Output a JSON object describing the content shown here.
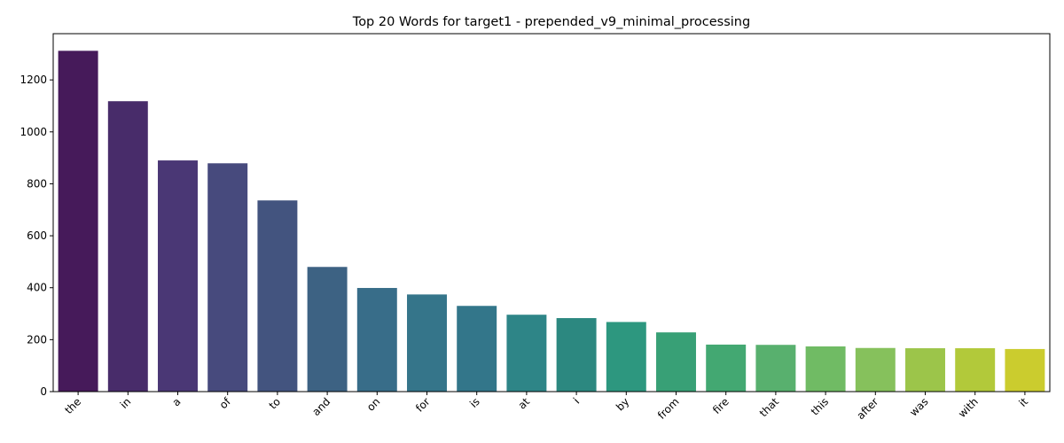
{
  "chart_data": {
    "type": "bar",
    "title": "Top 20 Words for target1 - prepended_v9_minimal_processing",
    "xlabel": "",
    "ylabel": "",
    "categories": [
      "the",
      "in",
      "a",
      "of",
      "to",
      "and",
      "on",
      "for",
      "is",
      "at",
      "i",
      "by",
      "from",
      "fire",
      "that",
      "this",
      "after",
      "was",
      "with",
      "it"
    ],
    "values": [
      1312,
      1118,
      890,
      879,
      736,
      480,
      399,
      374,
      330,
      296,
      283,
      268,
      228,
      181,
      180,
      174,
      168,
      167,
      167,
      164
    ],
    "colors": [
      "#461a5a",
      "#482c6a",
      "#4a3775",
      "#474a7d",
      "#43547f",
      "#3d6283",
      "#386d89",
      "#35758a",
      "#33768a",
      "#2e8587",
      "#2c8880",
      "#2d977f",
      "#38a076",
      "#43a872",
      "#58b06e",
      "#70bb64",
      "#86c15c",
      "#9cc54a",
      "#b2c93a",
      "#cbcc2e"
    ],
    "ylim": [
      0,
      1378
    ],
    "yticks": [
      0,
      200,
      400,
      600,
      800,
      1000,
      1200
    ],
    "grid": false,
    "legend": "none",
    "xtick_rotation": 45
  }
}
